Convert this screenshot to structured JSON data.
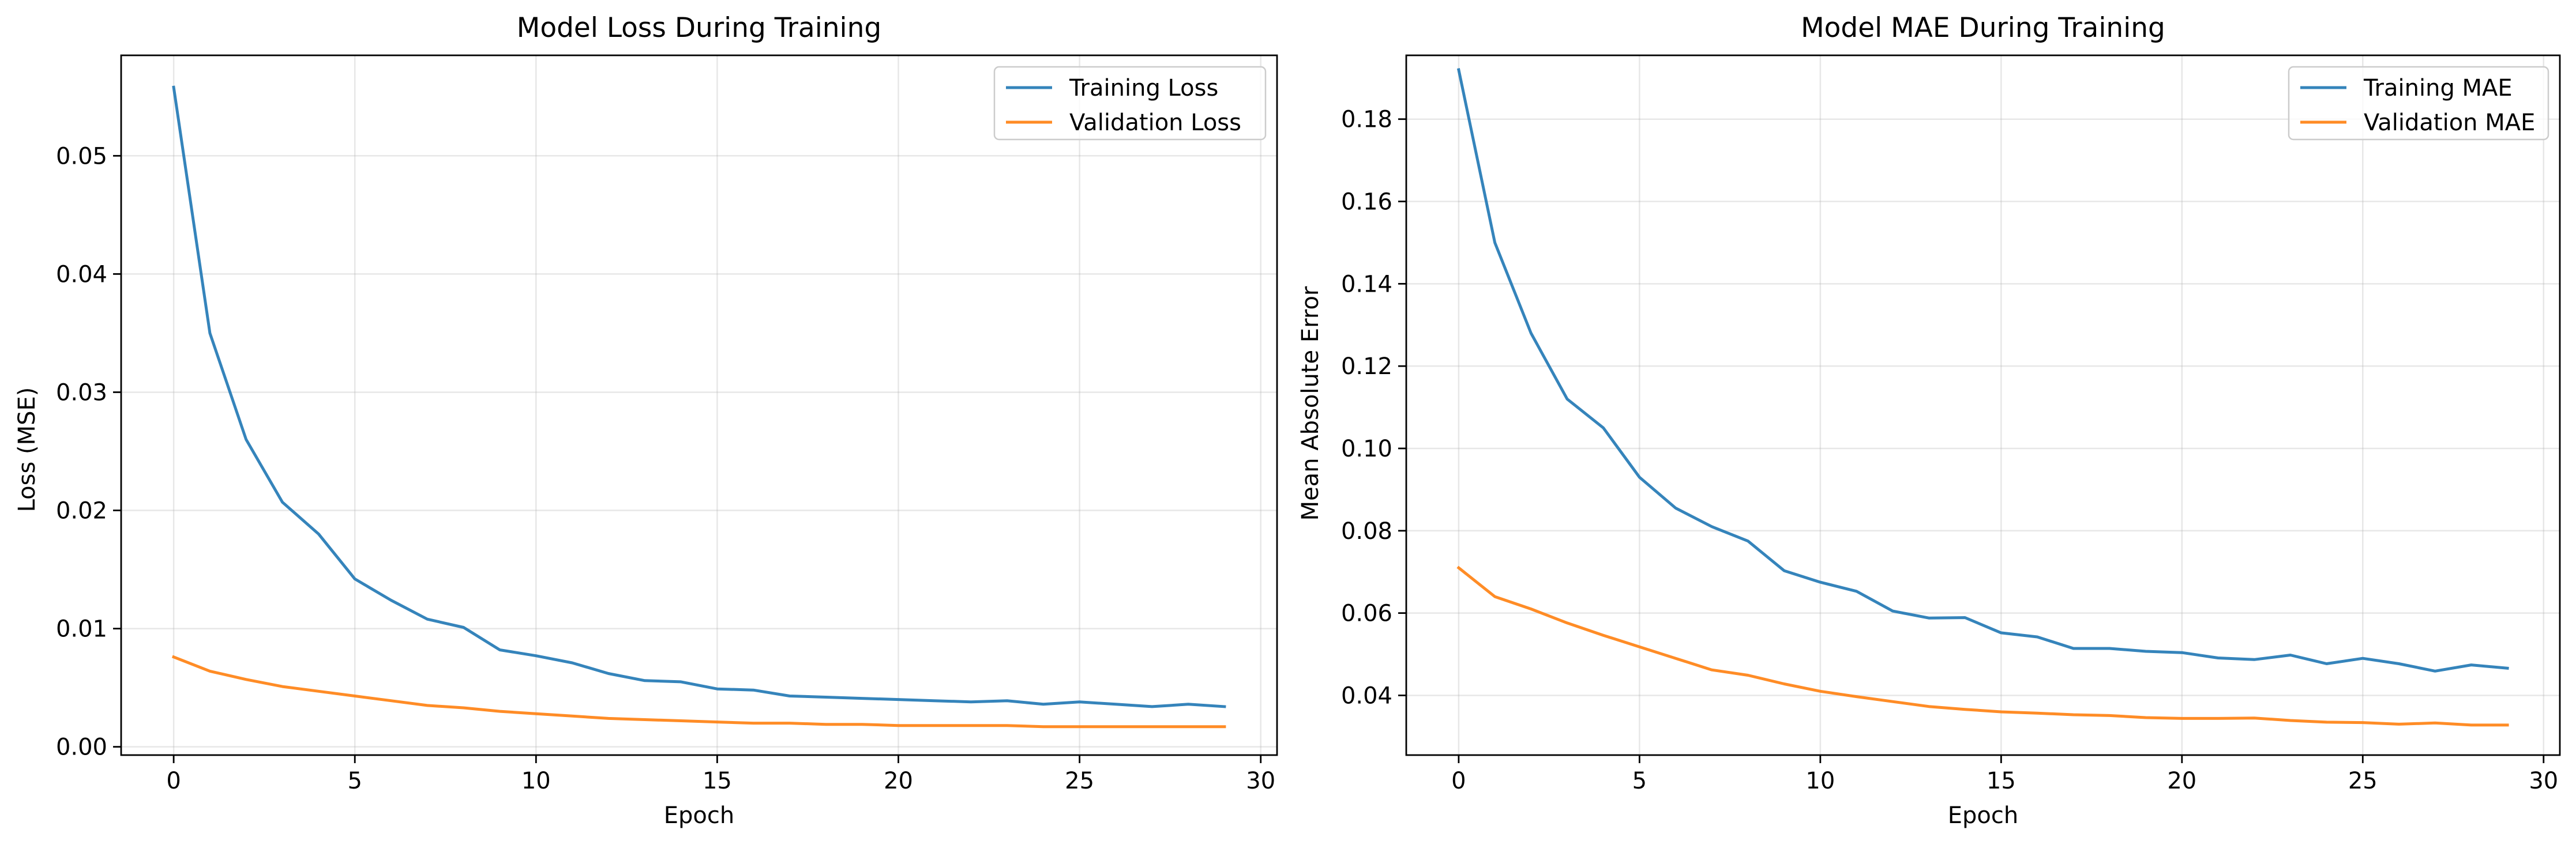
{
  "chart_data": [
    {
      "type": "line",
      "title": "Model Loss During Training",
      "xlabel": "Epoch",
      "ylabel": "Loss (MSE)",
      "xlim": [
        -1.45,
        30.45
      ],
      "ylim": [
        -0.0007,
        0.0585
      ],
      "xticks": [
        0,
        5,
        10,
        15,
        20,
        25,
        30
      ],
      "xtick_labels": [
        "0",
        "5",
        "10",
        "15",
        "20",
        "25",
        "30"
      ],
      "yticks": [
        0.0,
        0.01,
        0.02,
        0.03,
        0.04,
        0.05
      ],
      "ytick_labels": [
        "0.00",
        "0.01",
        "0.02",
        "0.03",
        "0.04",
        "0.05"
      ],
      "grid": true,
      "legend_position": "top-right",
      "x": [
        0,
        1,
        2,
        3,
        4,
        5,
        6,
        7,
        8,
        9,
        10,
        11,
        12,
        13,
        14,
        15,
        16,
        17,
        18,
        19,
        20,
        21,
        22,
        23,
        24,
        25,
        26,
        27,
        28,
        29
      ],
      "series": [
        {
          "name": "Training Loss",
          "color": "#1f77b4",
          "values": [
            0.0558,
            0.035,
            0.026,
            0.0207,
            0.018,
            0.0142,
            0.0124,
            0.0108,
            0.0101,
            0.0082,
            0.0077,
            0.0071,
            0.0062,
            0.0056,
            0.0055,
            0.0049,
            0.0048,
            0.0043,
            0.0042,
            0.0041,
            0.004,
            0.0039,
            0.0038,
            0.0039,
            0.0036,
            0.0038,
            0.0036,
            0.0034,
            0.0036,
            0.0034
          ]
        },
        {
          "name": "Validation Loss",
          "color": "#ff7f0e",
          "values": [
            0.0076,
            0.0064,
            0.0057,
            0.0051,
            0.0047,
            0.0043,
            0.0039,
            0.0035,
            0.0033,
            0.003,
            0.0028,
            0.0026,
            0.0024,
            0.0023,
            0.0022,
            0.0021,
            0.002,
            0.002,
            0.0019,
            0.0019,
            0.0018,
            0.0018,
            0.0018,
            0.0018,
            0.0017,
            0.0017,
            0.0017,
            0.0017,
            0.0017,
            0.0017
          ]
        }
      ]
    },
    {
      "type": "line",
      "title": "Model MAE During Training",
      "xlabel": "Epoch",
      "ylabel": "Mean Absolute Error",
      "xlim": [
        -1.45,
        30.45
      ],
      "ylim": [
        0.0255,
        0.1955
      ],
      "xticks": [
        0,
        5,
        10,
        15,
        20,
        25,
        30
      ],
      "xtick_labels": [
        "0",
        "5",
        "10",
        "15",
        "20",
        "25",
        "30"
      ],
      "yticks": [
        0.04,
        0.06,
        0.08,
        0.1,
        0.12,
        0.14,
        0.16,
        0.18
      ],
      "ytick_labels": [
        "0.04",
        "0.06",
        "0.08",
        "0.10",
        "0.12",
        "0.14",
        "0.16",
        "0.18"
      ],
      "grid": true,
      "legend_position": "top-right",
      "x": [
        0,
        1,
        2,
        3,
        4,
        5,
        6,
        7,
        8,
        9,
        10,
        11,
        12,
        13,
        14,
        15,
        16,
        17,
        18,
        19,
        20,
        21,
        22,
        23,
        24,
        25,
        26,
        27,
        28,
        29
      ],
      "series": [
        {
          "name": "Training MAE",
          "color": "#1f77b4",
          "values": [
            0.192,
            0.15,
            0.128,
            0.112,
            0.105,
            0.093,
            0.0855,
            0.081,
            0.0775,
            0.0703,
            0.0675,
            0.0653,
            0.0605,
            0.0588,
            0.0589,
            0.0552,
            0.0542,
            0.0514,
            0.0514,
            0.0507,
            0.0504,
            0.0491,
            0.0487,
            0.0498,
            0.0477,
            0.049,
            0.0477,
            0.0459,
            0.0474,
            0.0466
          ]
        },
        {
          "name": "Validation MAE",
          "color": "#ff7f0e",
          "values": [
            0.071,
            0.064,
            0.061,
            0.0576,
            0.0546,
            0.0518,
            0.049,
            0.0462,
            0.0449,
            0.0428,
            0.041,
            0.0397,
            0.0385,
            0.0373,
            0.0366,
            0.036,
            0.0357,
            0.0353,
            0.0351,
            0.0346,
            0.0344,
            0.0344,
            0.0345,
            0.0339,
            0.0335,
            0.0334,
            0.033,
            0.0333,
            0.0328,
            0.0328
          ]
        }
      ]
    }
  ]
}
